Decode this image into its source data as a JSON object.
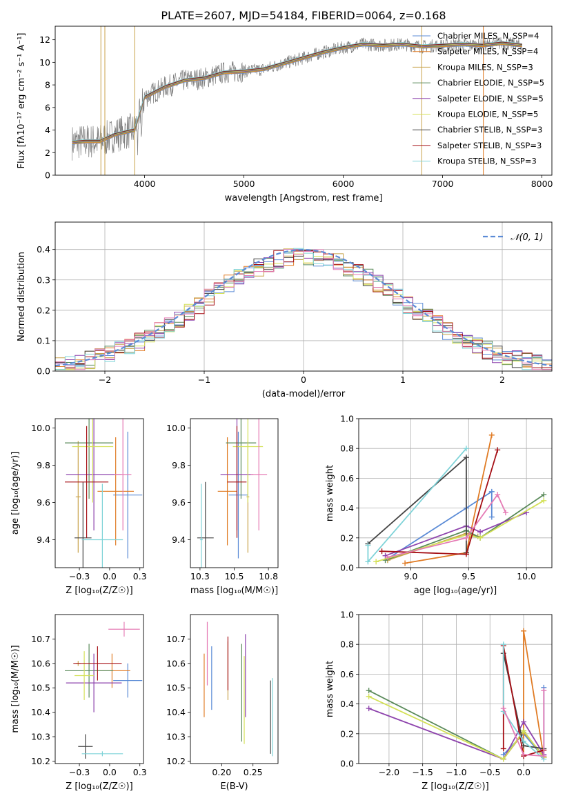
{
  "colors": [
    "#5b8bd6",
    "#e07b24",
    "#c8a24a",
    "#5a8a5a",
    "#8e44ad",
    "#d4e157",
    "#444444",
    "#a50f15",
    "#7fd3d8",
    "#e57bb5"
  ],
  "chart_data": [
    {
      "id": "spectrum",
      "type": "line",
      "title": "PLATE=2607, MJD=54184, FIBERID=0064, z=0.168",
      "xlabel": "wavelength [Angstrom, rest frame]",
      "ylabel": "Flux [fλ10⁻¹⁷ erg cm⁻² s⁻¹ A⁻¹]",
      "xlim": [
        3100,
        8100
      ],
      "ylim": [
        0,
        13.2
      ],
      "xticks": [
        4000,
        5000,
        6000,
        7000,
        8000
      ],
      "yticks": [
        0,
        2,
        4,
        6,
        8,
        10,
        12
      ],
      "x": [
        3270,
        3400,
        3550,
        3700,
        3900,
        4000,
        4200,
        4400,
        4600,
        4800,
        5000,
        5200,
        5400,
        5600,
        5800,
        6000,
        6200,
        6400,
        6600,
        6800,
        7000,
        7200,
        7400,
        7600,
        7800
      ],
      "model_flux": [
        2.9,
        3.0,
        3.0,
        3.6,
        4.0,
        6.9,
        7.8,
        8.4,
        8.6,
        9.1,
        9.2,
        9.4,
        9.9,
        10.4,
        10.9,
        11.3,
        11.6,
        11.5,
        11.6,
        11.4,
        11.5,
        11.6,
        11.5,
        11.7,
        11.5
      ],
      "series": [
        {
          "name": "Chabrier MILES, N_SSP=4"
        },
        {
          "name": "Salpeter MILES, N_SSP=4"
        },
        {
          "name": "Kroupa MILES, N_SSP=3"
        },
        {
          "name": "Chabrier ELODIE, N_SSP=5"
        },
        {
          "name": "Salpeter ELODIE, N_SSP=5"
        },
        {
          "name": "Kroupa ELODIE, N_SSP=5"
        },
        {
          "name": "Chabrier STELIB, N_SSP=3"
        },
        {
          "name": "Salpeter STELIB, N_SSP=3"
        },
        {
          "name": "Kroupa STELIB, N_SSP=3"
        }
      ]
    },
    {
      "id": "residuals",
      "type": "line",
      "xlabel": "(data-model)/error",
      "ylabel": "Normed distribution",
      "xlim": [
        -2.5,
        2.5
      ],
      "ylim": [
        0,
        0.49
      ],
      "xticks": [
        -2,
        -1,
        0,
        1,
        2
      ],
      "yticks": [
        0.0,
        0.1,
        0.2,
        0.3,
        0.4
      ],
      "legend": "𝒩(0, 1)",
      "gaussian": {
        "mu": 0,
        "sigma": 1
      },
      "bin_width": 0.1
    },
    {
      "id": "age_vs_z",
      "type": "scatter",
      "xlabel": "Z [log₁₀(Z/Z☉)]",
      "ylabel": "age  [log₁₀(age/yr)]",
      "xlim": [
        -0.45,
        0.28
      ],
      "ylim": [
        9.25,
        10.05
      ],
      "xticks": [
        -0.25,
        0.0,
        0.25
      ],
      "yticks": [
        9.4,
        9.6,
        9.8,
        10.0
      ],
      "points": [
        {
          "x": 0.15,
          "y": 9.64,
          "xerr": 0.12,
          "yerr": 0.34
        },
        {
          "x": 0.05,
          "y": 9.66,
          "xerr": 0.15,
          "yerr": 0.29
        },
        {
          "x": -0.26,
          "y": 9.63,
          "xerr": 0.02,
          "yerr": 0.3
        },
        {
          "x": -0.17,
          "y": 9.92,
          "xerr": 0.2,
          "yerr": 0.3
        },
        {
          "x": -0.13,
          "y": 9.75,
          "xerr": 0.23,
          "yerr": 0.3
        },
        {
          "x": -0.14,
          "y": 9.9,
          "xerr": 0.17,
          "yerr": 0.3
        },
        {
          "x": -0.22,
          "y": 9.41,
          "xerr": 0.07,
          "yerr": 0.3
        },
        {
          "x": -0.19,
          "y": 9.71,
          "xerr": 0.18,
          "yerr": 0.3
        },
        {
          "x": -0.06,
          "y": 9.4,
          "xerr": 0.17,
          "yerr": 0.3
        },
        {
          "x": 0.11,
          "y": 9.75,
          "xerr": 0.07,
          "yerr": 0.3
        }
      ]
    },
    {
      "id": "age_vs_mass",
      "type": "scatter",
      "xlabel": "mass [log₁₀(M/M☉)]",
      "ylabel": "",
      "xlim": [
        10.18,
        10.82
      ],
      "ylim": [
        9.25,
        10.05
      ],
      "xticks": [
        10.25,
        10.5,
        10.75
      ],
      "yticks": [
        9.4,
        9.6,
        9.8,
        10.0
      ],
      "points": [
        {
          "x": 10.53,
          "y": 9.64,
          "xerr": 0.07,
          "yerr": 0.34
        },
        {
          "x": 10.45,
          "y": 9.66,
          "xerr": 0.07,
          "yerr": 0.29
        },
        {
          "x": 10.6,
          "y": 9.63,
          "xerr": 0.01,
          "yerr": 0.3
        },
        {
          "x": 10.55,
          "y": 9.92,
          "xerr": 0.11,
          "yerr": 0.3
        },
        {
          "x": 10.52,
          "y": 9.75,
          "xerr": 0.12,
          "yerr": 0.3
        },
        {
          "x": 10.6,
          "y": 9.9,
          "xerr": 0.11,
          "yerr": 0.3
        },
        {
          "x": 10.29,
          "y": 9.41,
          "xerr": 0.06,
          "yerr": 0.3
        },
        {
          "x": 10.52,
          "y": 9.71,
          "xerr": 0.07,
          "yerr": 0.3
        },
        {
          "x": 10.26,
          "y": 9.4,
          "xerr": 0.01,
          "yerr": 0.3
        },
        {
          "x": 10.68,
          "y": 9.75,
          "xerr": 0.06,
          "yerr": 0.3
        }
      ]
    },
    {
      "id": "weight_vs_age",
      "type": "line",
      "xlabel": "age  [log₁₀(age/yr)]",
      "ylabel": "mass weight",
      "xlim": [
        8.55,
        10.22
      ],
      "ylim": [
        0,
        1.0
      ],
      "xticks": [
        9.0,
        9.5,
        10.0
      ],
      "yticks": [
        0.0,
        0.2,
        0.4,
        0.6,
        0.8,
        1.0
      ],
      "series": [
        {
          "x": [
            8.8,
            9.48,
            9.7,
            9.7
          ],
          "y": [
            0.06,
            0.4,
            0.51,
            0.34
          ]
        },
        {
          "x": [
            8.95,
            9.48,
            9.7
          ],
          "y": [
            0.03,
            0.1,
            0.89
          ]
        },
        {
          "x": [
            8.8,
            9.48,
            9.58
          ],
          "y": [
            0.05,
            0.23,
            0.21
          ]
        },
        {
          "x": [
            8.78,
            9.48,
            9.6,
            10.15
          ],
          "y": [
            0.05,
            0.25,
            0.2,
            0.49
          ]
        },
        {
          "x": [
            8.78,
            9.48,
            9.6,
            10.0
          ],
          "y": [
            0.08,
            0.28,
            0.24,
            0.37
          ]
        },
        {
          "x": [
            8.7,
            9.48,
            9.6,
            10.15
          ],
          "y": [
            0.04,
            0.22,
            0.2,
            0.45
          ]
        },
        {
          "x": [
            8.63,
            9.48,
            9.48
          ],
          "y": [
            0.16,
            0.74,
            0.1
          ]
        },
        {
          "x": [
            8.75,
            9.48,
            9.75
          ],
          "y": [
            0.11,
            0.09,
            0.79
          ]
        },
        {
          "x": [
            8.63,
            8.63,
            9.48
          ],
          "y": [
            0.15,
            0.04,
            0.8
          ]
        },
        {
          "x": [
            8.8,
            9.48,
            9.75,
            9.82
          ],
          "y": [
            0.07,
            0.2,
            0.49,
            0.37
          ]
        }
      ]
    },
    {
      "id": "mass_vs_z",
      "type": "scatter",
      "xlabel": "Z [log₁₀(Z/Z☉)]",
      "ylabel": "mass [log₁₀(M/M☉)]",
      "xlim": [
        -0.45,
        0.28
      ],
      "ylim": [
        10.19,
        10.8
      ],
      "xticks": [
        -0.25,
        0.0,
        0.25
      ],
      "yticks": [
        10.2,
        10.3,
        10.4,
        10.5,
        10.6,
        10.7
      ],
      "points": [
        {
          "x": 0.15,
          "y": 10.53,
          "xerr": 0.12,
          "yerr": 0.07
        },
        {
          "x": 0.02,
          "y": 10.57,
          "xerr": 0.15,
          "yerr": 0.07
        },
        {
          "x": -0.26,
          "y": 10.6,
          "xerr": 0.02,
          "yerr": 0.01
        },
        {
          "x": -0.17,
          "y": 10.57,
          "xerr": 0.2,
          "yerr": 0.11
        },
        {
          "x": -0.13,
          "y": 10.52,
          "xerr": 0.23,
          "yerr": 0.12
        },
        {
          "x": -0.21,
          "y": 10.55,
          "xerr": 0.08,
          "yerr": 0.1
        },
        {
          "x": -0.2,
          "y": 10.26,
          "xerr": 0.06,
          "yerr": 0.05
        },
        {
          "x": -0.1,
          "y": 10.6,
          "xerr": 0.2,
          "yerr": 0.07
        },
        {
          "x": -0.06,
          "y": 10.23,
          "xerr": 0.17,
          "yerr": 0.01
        },
        {
          "x": 0.12,
          "y": 10.74,
          "xerr": 0.13,
          "yerr": 0.03
        }
      ]
    },
    {
      "id": "mass_vs_ebv",
      "type": "scatter",
      "xlabel": "E(B-V)",
      "ylabel": "",
      "xlim": [
        0.15,
        0.29
      ],
      "ylim": [
        10.19,
        10.8
      ],
      "xticks": [
        0.2,
        0.25
      ],
      "yticks": [
        10.2,
        10.3,
        10.4,
        10.5,
        10.6,
        10.7
      ],
      "points": [
        {
          "x": 0.184,
          "y": 10.54,
          "yerr": 0.13
        },
        {
          "x": 0.172,
          "y": 10.51,
          "yerr": 0.13
        },
        {
          "x": 0.21,
          "y": 10.57,
          "yerr": 0.12
        },
        {
          "x": 0.232,
          "y": 10.48,
          "yerr": 0.2
        },
        {
          "x": 0.238,
          "y": 10.55,
          "yerr": 0.17
        },
        {
          "x": 0.236,
          "y": 10.45,
          "yerr": 0.18
        },
        {
          "x": 0.278,
          "y": 10.38,
          "yerr": 0.15
        },
        {
          "x": 0.21,
          "y": 10.6,
          "yerr": 0.11
        },
        {
          "x": 0.281,
          "y": 10.38,
          "yerr": 0.16
        },
        {
          "x": 0.177,
          "y": 10.64,
          "yerr": 0.13
        }
      ]
    },
    {
      "id": "weight_vs_z",
      "type": "line",
      "xlabel": "Z [log₁₀(Z/Z☉)]",
      "ylabel": "mass weight",
      "xlim": [
        -2.45,
        0.42
      ],
      "ylim": [
        0,
        1.0
      ],
      "xticks": [
        -2.0,
        -1.5,
        -1.0,
        -0.5,
        0.0
      ],
      "yticks": [
        0.0,
        0.2,
        0.4,
        0.6,
        0.8,
        1.0
      ],
      "series": [
        {
          "x": [
            -0.3,
            0.0,
            0.3,
            0.3
          ],
          "y": [
            0.06,
            0.2,
            0.04,
            0.51
          ]
        },
        {
          "x": [
            0.0,
            0.0,
            0.3
          ],
          "y": [
            0.06,
            0.89,
            0.04
          ]
        },
        {
          "x": [
            -0.3,
            0.0,
            0.3
          ],
          "y": [
            0.03,
            0.21,
            0.05
          ]
        },
        {
          "x": [
            -2.3,
            -0.3,
            0.0,
            0.3
          ],
          "y": [
            0.49,
            0.03,
            0.22,
            0.04
          ]
        },
        {
          "x": [
            -2.3,
            -0.3,
            0.0,
            0.3
          ],
          "y": [
            0.37,
            0.03,
            0.28,
            0.06
          ]
        },
        {
          "x": [
            -2.3,
            -0.3,
            0.0,
            0.3
          ],
          "y": [
            0.45,
            0.03,
            0.22,
            0.04
          ]
        },
        {
          "x": [
            -0.3,
            0.0,
            0.3
          ],
          "y": [
            0.74,
            0.12,
            0.1
          ]
        },
        {
          "x": [
            -0.3,
            -0.3,
            0.0,
            0.3
          ],
          "y": [
            0.1,
            0.79,
            0.05,
            0.09
          ]
        },
        {
          "x": [
            -0.3,
            -0.3,
            0.0,
            0.3
          ],
          "y": [
            0.8,
            0.35,
            0.15,
            0.03
          ]
        },
        {
          "x": [
            -0.3,
            0.0,
            0.3,
            0.3
          ],
          "y": [
            0.37,
            0.06,
            0.05,
            0.49
          ]
        }
      ]
    }
  ]
}
